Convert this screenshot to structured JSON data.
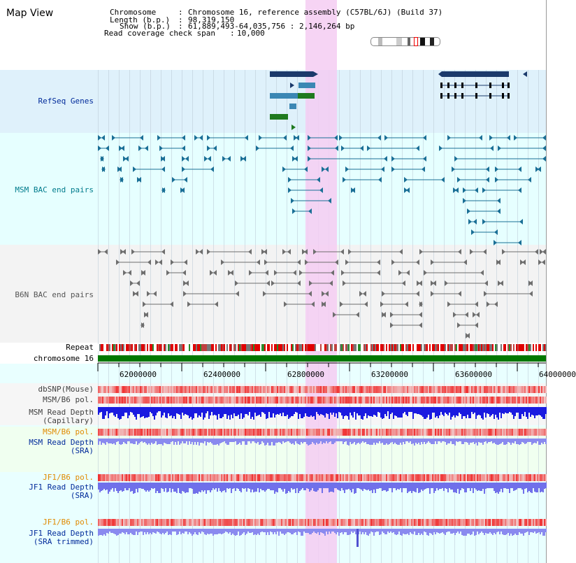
{
  "view_title": "Map View",
  "info": {
    "chromosome_label": "Chromosome",
    "chromosome_value": "Chromosome 16, reference assembly (C57BL/6J) (Build 37)",
    "length_label": "Length (b.p.)",
    "length_value": "98,319,150",
    "show_label": "Show (b.p.)",
    "show_value": "61,889,493-64,035,756 : 2,146,264 bp",
    "read_coverage_label": "Read coverage check span",
    "read_coverage_value": "10,000"
  },
  "tracks": {
    "refseq": "RefSeq Genes",
    "msm_bac": "MSM BAC end pairs",
    "b6n_bac": "B6N BAC end pairs",
    "repeat": "Repeat",
    "chromosome": "chromosome 16",
    "dbsnp": "dbSNP(Mouse)",
    "msm_b6_pol": "MSM/B6 pol.",
    "msm_depth_cap_1": "MSM Read Depth",
    "msm_depth_cap_2": "(Capillary)",
    "msm_b6_pol_2": "MSM/B6 pol.",
    "msm_depth_sra_1": "MSM Read Depth",
    "msm_depth_sra_2": "(SRA)",
    "jf1_b6_pol": "JF1/B6 pol.",
    "jf1_depth_sra_1": "JF1 Read Depth",
    "jf1_depth_sra_2": "(SRA)",
    "jf1_b6_pol_2": "JF1/B6 pol.",
    "jf1_depth_trim_1": "JF1 Read Depth",
    "jf1_depth_trim_2": "(SRA trimmed)"
  },
  "ruler": {
    "ticks": [
      "62000000",
      "62400000",
      "62800000",
      "63200000",
      "63600000",
      "64000000"
    ]
  },
  "colors": {
    "refseq_bg": "#dff1fb",
    "msm_bg": "#e6ffff",
    "b6n_bg": "#f2f2f2",
    "highlight": "#f5ccf2",
    "gene_dark": "#1b3a6b",
    "gene_mid": "#3b87b4",
    "gene_green": "#1f7a1f",
    "chrom_green": "#007800",
    "label_blue": "#002a9a",
    "label_orange": "#e08a00",
    "label_gray": "#404040"
  }
}
